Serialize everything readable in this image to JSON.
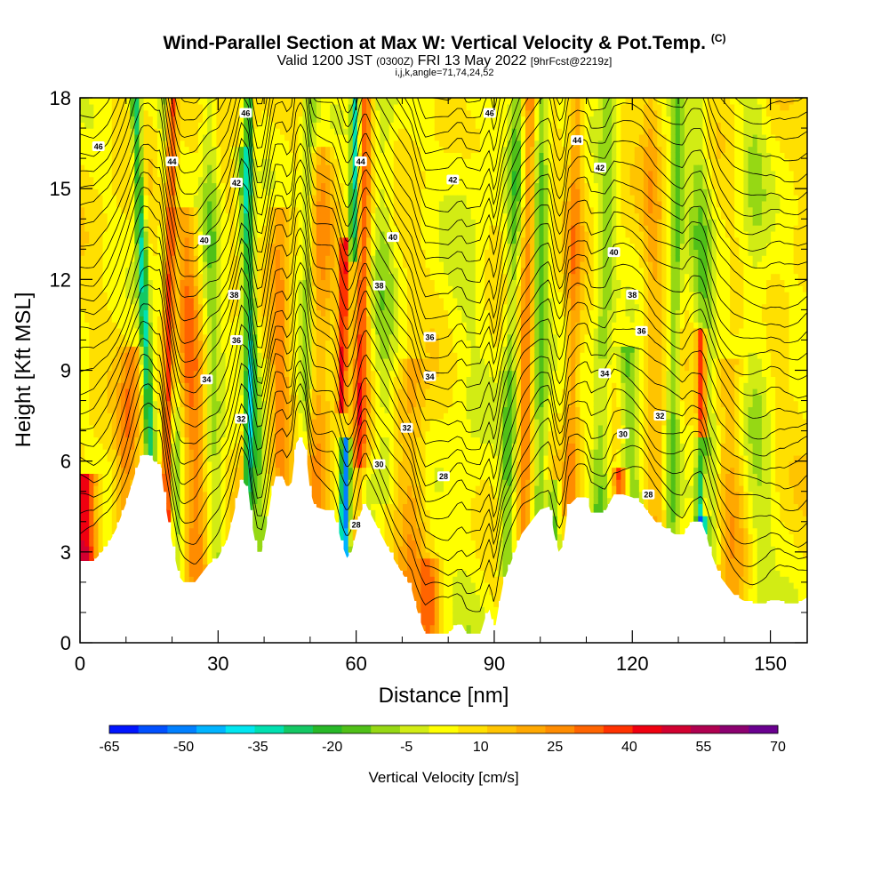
{
  "header": {
    "title_main": "Wind-Parallel Section at Max W: Vertical Velocity & Pot.Temp.",
    "title_unit": "(C)",
    "valid_prefix": "Valid 1200 JST",
    "valid_zulu": "(0300Z)",
    "valid_date": "FRI 13 May 2022",
    "forecast_info": "[9hrFcst@2219z]",
    "grid_info": "i,j,k,angle=71,74,24,52"
  },
  "colorbar": {
    "title": "Vertical Velocity [cm/s]",
    "colors": [
      "#0015ff",
      "#0050ff",
      "#0080ff",
      "#00b4ff",
      "#00e6f0",
      "#00e0b0",
      "#14c864",
      "#28b828",
      "#50c018",
      "#96d814",
      "#d2ec14",
      "#ffff00",
      "#ffe000",
      "#ffc400",
      "#ffa800",
      "#ff8c00",
      "#ff6400",
      "#ff3200",
      "#f00010",
      "#d20030",
      "#b00050",
      "#8c0070",
      "#6a0090"
    ],
    "ticks": [
      {
        "value": -65,
        "label": "-65"
      },
      {
        "value": -50,
        "label": "-50"
      },
      {
        "value": -35,
        "label": "-35"
      },
      {
        "value": -20,
        "label": "-20"
      },
      {
        "value": -5,
        "label": "-5"
      },
      {
        "value": 10,
        "label": "10"
      },
      {
        "value": 25,
        "label": "25"
      },
      {
        "value": 40,
        "label": "40"
      },
      {
        "value": 55,
        "label": "55"
      },
      {
        "value": 70,
        "label": "70"
      }
    ],
    "min": -65,
    "max": 70
  },
  "chart_data": {
    "type": "heatmap",
    "title": "Wind-Parallel Section at Max W: Vertical Velocity & Pot.Temp. (C)",
    "xlabel": "Distance [nm]",
    "ylabel": "Height [Kft MSL]",
    "xlim": [
      0,
      158
    ],
    "ylim": [
      0,
      18
    ],
    "xticks": [
      0,
      30,
      60,
      90,
      120,
      150
    ],
    "xtick_labels": [
      "0",
      "30",
      "60",
      "90",
      "120",
      "150"
    ],
    "yticks": [
      0,
      3,
      6,
      9,
      12,
      15,
      18
    ],
    "ytick_labels": [
      "0",
      "3",
      "6",
      "9",
      "12",
      "15",
      "18"
    ],
    "fill_variable": "Vertical Velocity [cm/s]",
    "contour_variable": "Potential Temperature (C)",
    "terrain": [
      {
        "x": 0,
        "y": 2.7
      },
      {
        "x": 3,
        "y": 2.7
      },
      {
        "x": 6,
        "y": 3.2
      },
      {
        "x": 8,
        "y": 3.8
      },
      {
        "x": 10,
        "y": 4.6
      },
      {
        "x": 12,
        "y": 5.6
      },
      {
        "x": 13.5,
        "y": 6.2
      },
      {
        "x": 15,
        "y": 6.2
      },
      {
        "x": 16.5,
        "y": 5.9
      },
      {
        "x": 17.5,
        "y": 5.9
      },
      {
        "x": 18.5,
        "y": 4.6
      },
      {
        "x": 19.5,
        "y": 3.7
      },
      {
        "x": 20.5,
        "y": 2.9
      },
      {
        "x": 21.5,
        "y": 2.2
      },
      {
        "x": 22.5,
        "y": 2.0
      },
      {
        "x": 25,
        "y": 2.0
      },
      {
        "x": 26,
        "y": 2.2
      },
      {
        "x": 28,
        "y": 2.6
      },
      {
        "x": 30,
        "y": 2.8
      },
      {
        "x": 32,
        "y": 3.4
      },
      {
        "x": 33.5,
        "y": 4.3
      },
      {
        "x": 35,
        "y": 5.4
      },
      {
        "x": 36.5,
        "y": 5.1
      },
      {
        "x": 37.5,
        "y": 3.8
      },
      {
        "x": 38.5,
        "y": 3.0
      },
      {
        "x": 39.5,
        "y": 3.0
      },
      {
        "x": 40.5,
        "y": 3.8
      },
      {
        "x": 41.5,
        "y": 4.8
      },
      {
        "x": 42.5,
        "y": 5.5
      },
      {
        "x": 44,
        "y": 5.5
      },
      {
        "x": 45,
        "y": 5.1
      },
      {
        "x": 46,
        "y": 5.3
      },
      {
        "x": 47,
        "y": 6.6
      },
      {
        "x": 48,
        "y": 6.8
      },
      {
        "x": 49,
        "y": 6.4
      },
      {
        "x": 50,
        "y": 5.0
      },
      {
        "x": 51,
        "y": 4.5
      },
      {
        "x": 53,
        "y": 4.4
      },
      {
        "x": 55,
        "y": 4.3
      },
      {
        "x": 56,
        "y": 3.8
      },
      {
        "x": 57,
        "y": 3.2
      },
      {
        "x": 58,
        "y": 2.8
      },
      {
        "x": 59,
        "y": 3.0
      },
      {
        "x": 60,
        "y": 3.6
      },
      {
        "x": 61,
        "y": 4.3
      },
      {
        "x": 62,
        "y": 4.6
      },
      {
        "x": 64,
        "y": 4.0
      },
      {
        "x": 66,
        "y": 3.4
      },
      {
        "x": 68,
        "y": 2.8
      },
      {
        "x": 70,
        "y": 2.3
      },
      {
        "x": 72,
        "y": 1.8
      },
      {
        "x": 73,
        "y": 1.2
      },
      {
        "x": 74,
        "y": 0.7
      },
      {
        "x": 75,
        "y": 0.3
      },
      {
        "x": 80,
        "y": 0.3
      },
      {
        "x": 82,
        "y": 0.6
      },
      {
        "x": 83,
        "y": 0.6
      },
      {
        "x": 84,
        "y": 0.3
      },
      {
        "x": 87,
        "y": 0.3
      },
      {
        "x": 88,
        "y": 0.8
      },
      {
        "x": 89,
        "y": 1.1
      },
      {
        "x": 90,
        "y": 0.3
      },
      {
        "x": 91,
        "y": 1.2
      },
      {
        "x": 92,
        "y": 2.0
      },
      {
        "x": 94,
        "y": 2.8
      },
      {
        "x": 96,
        "y": 3.6
      },
      {
        "x": 98,
        "y": 4.0
      },
      {
        "x": 100,
        "y": 4.4
      },
      {
        "x": 102,
        "y": 4.5
      },
      {
        "x": 103,
        "y": 3.6
      },
      {
        "x": 104,
        "y": 3.0
      },
      {
        "x": 105,
        "y": 3.2
      },
      {
        "x": 106,
        "y": 4.5
      },
      {
        "x": 108,
        "y": 4.8
      },
      {
        "x": 110,
        "y": 4.8
      },
      {
        "x": 111,
        "y": 4.3
      },
      {
        "x": 114,
        "y": 4.3
      },
      {
        "x": 115,
        "y": 4.6
      },
      {
        "x": 116,
        "y": 4.9
      },
      {
        "x": 118,
        "y": 4.9
      },
      {
        "x": 120,
        "y": 4.8
      },
      {
        "x": 122,
        "y": 4.6
      },
      {
        "x": 123,
        "y": 4.4
      },
      {
        "x": 124,
        "y": 4.2
      },
      {
        "x": 125,
        "y": 4.0
      },
      {
        "x": 127,
        "y": 3.8
      },
      {
        "x": 129,
        "y": 3.6
      },
      {
        "x": 131,
        "y": 3.5
      },
      {
        "x": 132,
        "y": 3.8
      },
      {
        "x": 133,
        "y": 4.0
      },
      {
        "x": 135,
        "y": 4.0
      },
      {
        "x": 136,
        "y": 3.6
      },
      {
        "x": 137,
        "y": 3.0
      },
      {
        "x": 138,
        "y": 2.6
      },
      {
        "x": 139,
        "y": 2.2
      },
      {
        "x": 140,
        "y": 2.0
      },
      {
        "x": 141,
        "y": 1.8
      },
      {
        "x": 142,
        "y": 1.6
      },
      {
        "x": 144,
        "y": 1.4
      },
      {
        "x": 146,
        "y": 1.3
      },
      {
        "x": 149,
        "y": 1.3
      },
      {
        "x": 150,
        "y": 1.4
      },
      {
        "x": 152,
        "y": 1.4
      },
      {
        "x": 153,
        "y": 1.3
      },
      {
        "x": 156,
        "y": 1.3
      },
      {
        "x": 158,
        "y": 1.5
      }
    ],
    "velocity_features": [
      {
        "x_base": 1,
        "x_top": 1,
        "half_width": 2.5,
        "w": 42,
        "y_low": 3.0,
        "y_high": 5.2
      },
      {
        "x_base": 8,
        "x_top": 14,
        "half_width": 2.2,
        "w": 18,
        "y_low": 3.0,
        "y_high": 9.5
      },
      {
        "x_base": 17,
        "x_top": 12,
        "half_width": 1.1,
        "w": -35,
        "y_low": 5.8,
        "y_high": 18
      },
      {
        "x_base": 18.5,
        "x_top": 20,
        "half_width": 1.2,
        "w": 45,
        "y_low": 3.0,
        "y_high": 18
      },
      {
        "x_base": 21,
        "x_top": 19,
        "half_width": 1.8,
        "w": -18,
        "y_low": 2.2,
        "y_high": 18
      },
      {
        "x_base": 26,
        "x_top": 22,
        "half_width": 2.5,
        "w": 22,
        "y_low": 2.2,
        "y_high": 14
      },
      {
        "x_base": 30,
        "x_top": 28,
        "half_width": 2.0,
        "w": -15,
        "y_low": 3.0,
        "y_high": 18
      },
      {
        "x_base": 34,
        "x_top": 38,
        "half_width": 1.0,
        "w": 20,
        "y_low": 4.5,
        "y_high": 18
      },
      {
        "x_base": 36,
        "x_top": 37,
        "half_width": 1.2,
        "w": -35,
        "y_low": 3.5,
        "y_high": 18
      },
      {
        "x_base": 40,
        "x_top": 35,
        "half_width": 1.8,
        "w": -18,
        "y_low": 3.0,
        "y_high": 16
      },
      {
        "x_base": 44,
        "x_top": 43,
        "half_width": 2.0,
        "w": 18,
        "y_low": 5.0,
        "y_high": 14
      },
      {
        "x_base": 48,
        "x_top": 50,
        "half_width": 1.5,
        "w": -15,
        "y_low": 6.5,
        "y_high": 18
      },
      {
        "x_base": 51,
        "x_top": 53,
        "half_width": 2.5,
        "w": 15,
        "y_low": 4.5,
        "y_high": 16
      },
      {
        "x_base": 56,
        "x_top": 58,
        "half_width": 1.0,
        "w": 38,
        "y_low": 8.0,
        "y_high": 13
      },
      {
        "x_base": 57,
        "x_top": 59,
        "half_width": 1.0,
        "w": -55,
        "y_low": 2.9,
        "y_high": 6.5
      },
      {
        "x_base": 58,
        "x_top": 60,
        "half_width": 1.0,
        "w": -40,
        "y_low": 13,
        "y_high": 18
      },
      {
        "x_base": 60,
        "x_top": 62,
        "half_width": 1.5,
        "w": 30,
        "y_low": 3.5,
        "y_high": 18
      },
      {
        "x_base": 62,
        "x_top": 58,
        "half_width": 2.0,
        "w": -18,
        "y_low": 3.0,
        "y_high": 5.5
      },
      {
        "x_base": 66,
        "x_top": 66,
        "half_width": 2.5,
        "w": -12,
        "y_low": 5.0,
        "y_high": 18
      },
      {
        "x_base": 72,
        "x_top": 72,
        "half_width": 3.0,
        "w": 14,
        "y_low": 0.3,
        "y_high": 9.0
      },
      {
        "x_base": 76,
        "x_top": 76,
        "half_width": 2.0,
        "w": 20,
        "y_low": 0.3,
        "y_high": 2.6
      },
      {
        "x_base": 84,
        "x_top": 84,
        "half_width": 5.0,
        "w": -6,
        "y_low": 0.3,
        "y_high": 18
      },
      {
        "x_base": 92,
        "x_top": 95,
        "half_width": 1.6,
        "w": -18,
        "y_low": 2.5,
        "y_high": 18
      },
      {
        "x_base": 96,
        "x_top": 98,
        "half_width": 1.5,
        "w": 22,
        "y_low": 3.5,
        "y_high": 18
      },
      {
        "x_base": 100,
        "x_top": 100,
        "half_width": 1.8,
        "w": -20,
        "y_low": 4.0,
        "y_high": 18
      },
      {
        "x_base": 103,
        "x_top": 103,
        "half_width": 1.2,
        "w": -22,
        "y_low": 3.0,
        "y_high": 5.0
      },
      {
        "x_base": 106,
        "x_top": 108,
        "half_width": 1.5,
        "w": 18,
        "y_low": 4.5,
        "y_high": 18
      },
      {
        "x_base": 112,
        "x_top": 115,
        "half_width": 2.0,
        "w": -15,
        "y_low": 4.3,
        "y_high": 18
      },
      {
        "x_base": 118,
        "x_top": 116,
        "half_width": 1.5,
        "w": 35,
        "y_low": 4.6,
        "y_high": 5.6
      },
      {
        "x_base": 121,
        "x_top": 117,
        "half_width": 2.2,
        "w": -20,
        "y_low": 3.8,
        "y_high": 9.5
      },
      {
        "x_base": 126,
        "x_top": 124,
        "half_width": 2.0,
        "w": 12,
        "y_low": 3.6,
        "y_high": 18
      },
      {
        "x_base": 128,
        "x_top": 130,
        "half_width": 1.5,
        "w": -18,
        "y_low": 3.5,
        "y_high": 18
      },
      {
        "x_base": 134.5,
        "x_top": 136.5,
        "half_width": 1.0,
        "w": -55,
        "y_low": 4.0,
        "y_high": 6.5
      },
      {
        "x_base": 136,
        "x_top": 134,
        "half_width": 1.0,
        "w": 42,
        "y_low": 4.5,
        "y_high": 10
      },
      {
        "x_base": 138,
        "x_top": 134,
        "half_width": 2.5,
        "w": -15,
        "y_low": 3.0,
        "y_high": 18
      },
      {
        "x_base": 142,
        "x_top": 140,
        "half_width": 3.0,
        "w": 12,
        "y_low": 1.4,
        "y_high": 9.0
      },
      {
        "x_base": 148,
        "x_top": 146,
        "half_width": 3.0,
        "w": -10,
        "y_low": 1.3,
        "y_high": 18
      }
    ],
    "contour_labels": [
      {
        "x": 4,
        "y": 16.4,
        "label": "46"
      },
      {
        "x": 20,
        "y": 15.9,
        "label": "44"
      },
      {
        "x": 36,
        "y": 17.5,
        "label": "46"
      },
      {
        "x": 34,
        "y": 15.2,
        "label": "42"
      },
      {
        "x": 27,
        "y": 13.3,
        "label": "40"
      },
      {
        "x": 33.5,
        "y": 11.5,
        "label": "38"
      },
      {
        "x": 34,
        "y": 10.0,
        "label": "36"
      },
      {
        "x": 27.5,
        "y": 8.7,
        "label": "34"
      },
      {
        "x": 35,
        "y": 7.4,
        "label": "32"
      },
      {
        "x": 61,
        "y": 15.9,
        "label": "44"
      },
      {
        "x": 81,
        "y": 15.3,
        "label": "42"
      },
      {
        "x": 68,
        "y": 13.4,
        "label": "40"
      },
      {
        "x": 65,
        "y": 11.8,
        "label": "38"
      },
      {
        "x": 76,
        "y": 10.1,
        "label": "36"
      },
      {
        "x": 76,
        "y": 8.8,
        "label": "34"
      },
      {
        "x": 71,
        "y": 7.1,
        "label": "32"
      },
      {
        "x": 65,
        "y": 5.9,
        "label": "30"
      },
      {
        "x": 79,
        "y": 5.5,
        "label": "28"
      },
      {
        "x": 60,
        "y": 3.9,
        "label": "28"
      },
      {
        "x": 89,
        "y": 17.5,
        "label": "46"
      },
      {
        "x": 108,
        "y": 16.6,
        "label": "44"
      },
      {
        "x": 113,
        "y": 15.7,
        "label": "42"
      },
      {
        "x": 116,
        "y": 12.9,
        "label": "40"
      },
      {
        "x": 120,
        "y": 11.5,
        "label": "38"
      },
      {
        "x": 122,
        "y": 10.3,
        "label": "36"
      },
      {
        "x": 114,
        "y": 8.9,
        "label": "34"
      },
      {
        "x": 126,
        "y": 7.5,
        "label": "32"
      },
      {
        "x": 118,
        "y": 6.9,
        "label": "30"
      },
      {
        "x": 123.5,
        "y": 4.9,
        "label": "28"
      }
    ]
  }
}
